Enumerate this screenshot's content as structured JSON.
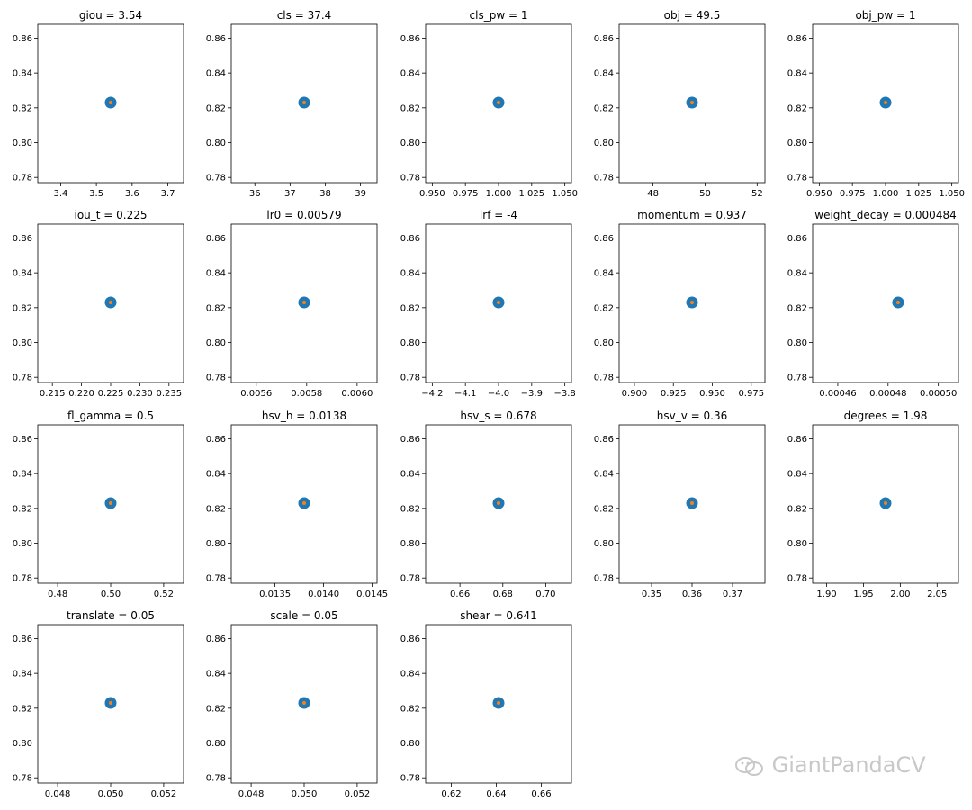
{
  "watermark": {
    "text": "GiantPandaCV",
    "icon": "wechat-icon"
  },
  "colors": {
    "outer_marker": "#1f77b4",
    "inner_marker": "#ff7f0e",
    "axes": "#000000"
  },
  "chart_data": [
    {
      "type": "scatter",
      "title": "giou = 3.54",
      "x": [
        3.54
      ],
      "y": [
        0.823
      ],
      "xticks": [
        "3.4",
        "3.5",
        "3.6",
        "3.7"
      ],
      "xtick_values": [
        3.4,
        3.5,
        3.6,
        3.7
      ],
      "xlim": [
        3.336,
        3.744
      ],
      "yticks": [
        "0.78",
        "0.80",
        "0.82",
        "0.84",
        "0.86"
      ],
      "ylim": [
        0.777,
        0.868
      ]
    },
    {
      "type": "scatter",
      "title": "cls = 37.4",
      "x": [
        37.4
      ],
      "y": [
        0.823
      ],
      "xticks": [
        "36",
        "37",
        "38",
        "39"
      ],
      "xtick_values": [
        36,
        37,
        38,
        39
      ],
      "xlim": [
        35.33,
        39.47
      ],
      "yticks": [
        "0.78",
        "0.80",
        "0.82",
        "0.84",
        "0.86"
      ],
      "ylim": [
        0.777,
        0.868
      ]
    },
    {
      "type": "scatter",
      "title": "cls_pw = 1",
      "x": [
        1.0
      ],
      "y": [
        0.823
      ],
      "xticks": [
        "0.950",
        "0.975",
        "1.000",
        "1.025",
        "1.050"
      ],
      "xtick_values": [
        0.95,
        0.975,
        1.0,
        1.025,
        1.05
      ],
      "xlim": [
        0.945,
        1.055
      ],
      "yticks": [
        "0.78",
        "0.80",
        "0.82",
        "0.84",
        "0.86"
      ],
      "ylim": [
        0.777,
        0.868
      ]
    },
    {
      "type": "scatter",
      "title": "obj = 49.5",
      "x": [
        49.5
      ],
      "y": [
        0.823
      ],
      "xticks": [
        "48",
        "50",
        "52"
      ],
      "xtick_values": [
        48,
        50,
        52
      ],
      "xlim": [
        46.7,
        52.3
      ],
      "yticks": [
        "0.78",
        "0.80",
        "0.82",
        "0.84",
        "0.86"
      ],
      "ylim": [
        0.777,
        0.868
      ]
    },
    {
      "type": "scatter",
      "title": "obj_pw = 1",
      "x": [
        1.0
      ],
      "y": [
        0.823
      ],
      "xticks": [
        "0.950",
        "0.975",
        "1.000",
        "1.025",
        "1.050"
      ],
      "xtick_values": [
        0.95,
        0.975,
        1.0,
        1.025,
        1.05
      ],
      "xlim": [
        0.945,
        1.055
      ],
      "yticks": [
        "0.78",
        "0.80",
        "0.82",
        "0.84",
        "0.86"
      ],
      "ylim": [
        0.777,
        0.868
      ]
    },
    {
      "type": "scatter",
      "title": "iou_t = 0.225",
      "x": [
        0.225
      ],
      "y": [
        0.823
      ],
      "xticks": [
        "0.215",
        "0.220",
        "0.225",
        "0.230",
        "0.235"
      ],
      "xtick_values": [
        0.215,
        0.22,
        0.225,
        0.23,
        0.235
      ],
      "xlim": [
        0.2125,
        0.2375
      ],
      "yticks": [
        "0.78",
        "0.80",
        "0.82",
        "0.84",
        "0.86"
      ],
      "ylim": [
        0.777,
        0.868
      ]
    },
    {
      "type": "scatter",
      "title": "lr0 = 0.00579",
      "x": [
        0.00579
      ],
      "y": [
        0.823
      ],
      "xticks": [
        "0.0056",
        "0.0058",
        "0.0060"
      ],
      "xtick_values": [
        0.0056,
        0.0058,
        0.006
      ],
      "xlim": [
        0.005501,
        0.006079
      ],
      "yticks": [
        "0.78",
        "0.80",
        "0.82",
        "0.84",
        "0.86"
      ],
      "ylim": [
        0.777,
        0.868
      ]
    },
    {
      "type": "scatter",
      "title": "lrf = -4",
      "x": [
        -4.0
      ],
      "y": [
        0.823
      ],
      "xticks": [
        "−4.2",
        "−4.1",
        "−4.0",
        "−3.9",
        "−3.8"
      ],
      "xtick_values": [
        -4.2,
        -4.1,
        -4.0,
        -3.9,
        -3.8
      ],
      "xlim": [
        -4.22,
        -3.78
      ],
      "yticks": [
        "0.78",
        "0.80",
        "0.82",
        "0.84",
        "0.86"
      ],
      "ylim": [
        0.777,
        0.868
      ]
    },
    {
      "type": "scatter",
      "title": "momentum = 0.937",
      "x": [
        0.937
      ],
      "y": [
        0.823
      ],
      "xticks": [
        "0.900",
        "0.925",
        "0.950",
        "0.975"
      ],
      "xtick_values": [
        0.9,
        0.925,
        0.95,
        0.975
      ],
      "xlim": [
        0.8902,
        0.9838
      ],
      "yticks": [
        "0.78",
        "0.80",
        "0.82",
        "0.84",
        "0.86"
      ],
      "ylim": [
        0.777,
        0.868
      ]
    },
    {
      "type": "scatter",
      "title": "weight_decay = 0.000484",
      "x": [
        0.000484
      ],
      "y": [
        0.823
      ],
      "xticks": [
        "0.00046",
        "0.00048",
        "0.00050"
      ],
      "xtick_values": [
        0.00046,
        0.00048,
        0.0005
      ],
      "xlim": [
        0.00045,
        0.000508
      ],
      "yticks": [
        "0.78",
        "0.80",
        "0.82",
        "0.84",
        "0.86"
      ],
      "ylim": [
        0.777,
        0.868
      ]
    },
    {
      "type": "scatter",
      "title": "fl_gamma = 0.5",
      "x": [
        0.5
      ],
      "y": [
        0.823
      ],
      "xticks": [
        "0.48",
        "0.50",
        "0.52"
      ],
      "xtick_values": [
        0.48,
        0.5,
        0.52
      ],
      "xlim": [
        0.4725,
        0.5275
      ],
      "yticks": [
        "0.78",
        "0.80",
        "0.82",
        "0.84",
        "0.86"
      ],
      "ylim": [
        0.777,
        0.868
      ]
    },
    {
      "type": "scatter",
      "title": "hsv_h = 0.0138",
      "x": [
        0.0138
      ],
      "y": [
        0.823
      ],
      "xticks": [
        "0.0135",
        "0.0140",
        "0.0145"
      ],
      "xtick_values": [
        0.0135,
        0.014,
        0.0145
      ],
      "xlim": [
        0.01305,
        0.01455
      ],
      "yticks": [
        "0.78",
        "0.80",
        "0.82",
        "0.84",
        "0.86"
      ],
      "ylim": [
        0.777,
        0.868
      ]
    },
    {
      "type": "scatter",
      "title": "hsv_s = 0.678",
      "x": [
        0.678
      ],
      "y": [
        0.823
      ],
      "xticks": [
        "0.66",
        "0.68",
        "0.70"
      ],
      "xtick_values": [
        0.66,
        0.68,
        0.7
      ],
      "xlim": [
        0.644,
        0.712
      ],
      "yticks": [
        "0.78",
        "0.80",
        "0.82",
        "0.84",
        "0.86"
      ],
      "ylim": [
        0.777,
        0.868
      ]
    },
    {
      "type": "scatter",
      "title": "hsv_v = 0.36",
      "x": [
        0.36
      ],
      "y": [
        0.823
      ],
      "xticks": [
        "0.35",
        "0.36",
        "0.37"
      ],
      "xtick_values": [
        0.35,
        0.36,
        0.37
      ],
      "xlim": [
        0.342,
        0.378
      ],
      "yticks": [
        "0.78",
        "0.80",
        "0.82",
        "0.84",
        "0.86"
      ],
      "ylim": [
        0.777,
        0.868
      ]
    },
    {
      "type": "scatter",
      "title": "degrees = 1.98",
      "x": [
        1.98
      ],
      "y": [
        0.823
      ],
      "xticks": [
        "1.90",
        "1.95",
        "2.00",
        "2.05"
      ],
      "xtick_values": [
        1.9,
        1.95,
        2.0,
        2.05
      ],
      "xlim": [
        1.881,
        2.079
      ],
      "yticks": [
        "0.78",
        "0.80",
        "0.82",
        "0.84",
        "0.86"
      ],
      "ylim": [
        0.777,
        0.868
      ]
    },
    {
      "type": "scatter",
      "title": "translate = 0.05",
      "x": [
        0.05
      ],
      "y": [
        0.823
      ],
      "xticks": [
        "0.048",
        "0.050",
        "0.052"
      ],
      "xtick_values": [
        0.048,
        0.05,
        0.052
      ],
      "xlim": [
        0.04725,
        0.05275
      ],
      "yticks": [
        "0.78",
        "0.80",
        "0.82",
        "0.84",
        "0.86"
      ],
      "ylim": [
        0.777,
        0.868
      ]
    },
    {
      "type": "scatter",
      "title": "scale = 0.05",
      "x": [
        0.05
      ],
      "y": [
        0.823
      ],
      "xticks": [
        "0.048",
        "0.050",
        "0.052"
      ],
      "xtick_values": [
        0.048,
        0.05,
        0.052
      ],
      "xlim": [
        0.04725,
        0.05275
      ],
      "yticks": [
        "0.78",
        "0.80",
        "0.82",
        "0.84",
        "0.86"
      ],
      "ylim": [
        0.777,
        0.868
      ]
    },
    {
      "type": "scatter",
      "title": "shear = 0.641",
      "x": [
        0.641
      ],
      "y": [
        0.823
      ],
      "xticks": [
        "0.62",
        "0.64",
        "0.66"
      ],
      "xtick_values": [
        0.62,
        0.64,
        0.66
      ],
      "xlim": [
        0.6086,
        0.6734
      ],
      "yticks": [
        "0.78",
        "0.80",
        "0.82",
        "0.84",
        "0.86"
      ],
      "ylim": [
        0.777,
        0.868
      ]
    }
  ]
}
